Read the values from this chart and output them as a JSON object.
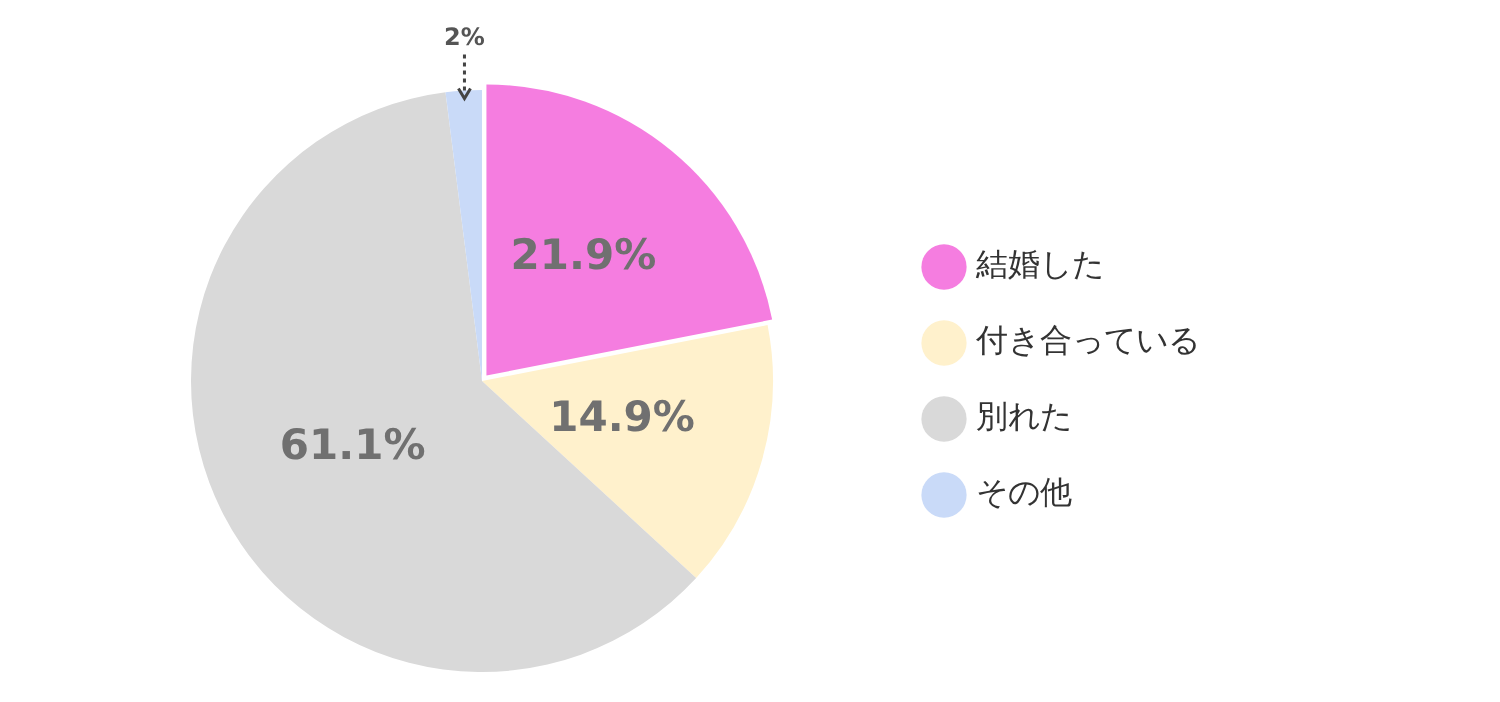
{
  "chart_data": {
    "type": "pie",
    "categories": [
      "結婚した",
      "付き合っている",
      "別れた",
      "その他"
    ],
    "values": [
      21.9,
      14.9,
      61.1,
      2
    ],
    "value_labels": [
      "21.9%",
      "14.9%",
      "61.1%",
      "2%"
    ],
    "colors": [
      "#f57de0",
      "#fff1cc",
      "#d9d9d9",
      "#c9daf8"
    ],
    "legend": "right"
  }
}
